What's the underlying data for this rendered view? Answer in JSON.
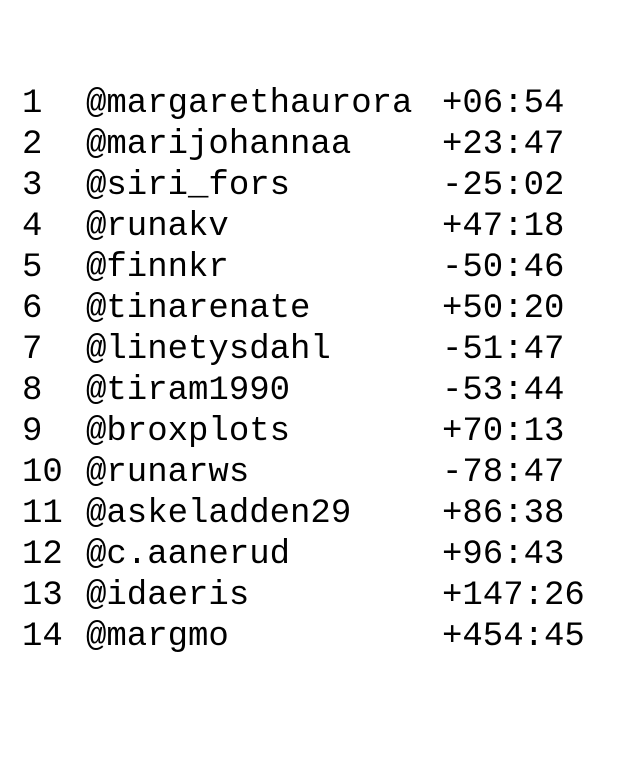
{
  "entries": [
    {
      "rank": "1",
      "handle": "@margarethaurora",
      "delta": "+06:54"
    },
    {
      "rank": "2",
      "handle": "@marijohannaa",
      "delta": "+23:47"
    },
    {
      "rank": "3",
      "handle": "@siri_fors",
      "delta": "-25:02"
    },
    {
      "rank": "4",
      "handle": "@runakv",
      "delta": "+47:18"
    },
    {
      "rank": "5",
      "handle": "@finnkr",
      "delta": "-50:46"
    },
    {
      "rank": "6",
      "handle": "@tinarenate",
      "delta": "+50:20"
    },
    {
      "rank": "7",
      "handle": "@linetysdahl",
      "delta": "-51:47"
    },
    {
      "rank": "8",
      "handle": "@tiram1990",
      "delta": "-53:44"
    },
    {
      "rank": "9",
      "handle": "@broxplots",
      "delta": "+70:13"
    },
    {
      "rank": "10",
      "handle": "@runarws",
      "delta": "-78:47"
    },
    {
      "rank": "11",
      "handle": "@askeladden29",
      "delta": "+86:38"
    },
    {
      "rank": "12",
      "handle": "@c.aanerud",
      "delta": "+96:43"
    },
    {
      "rank": "13",
      "handle": "@idaeris",
      "delta": "+147:26"
    },
    {
      "rank": "14",
      "handle": "@margmo",
      "delta": "+454:45"
    }
  ]
}
